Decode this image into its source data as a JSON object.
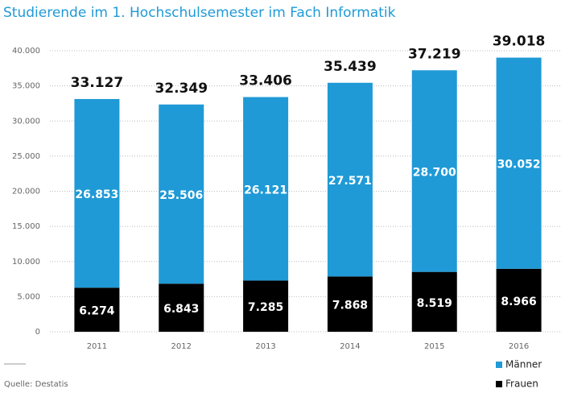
{
  "chart_data": {
    "type": "stacked_bar",
    "title": "Studierende im 1. Hochschulsemester im Fach Informatik",
    "categories": [
      "2011",
      "2012",
      "2013",
      "2014",
      "2015",
      "2016"
    ],
    "series": [
      {
        "name": "Frauen",
        "color": "#000000",
        "values": [
          6274,
          6843,
          7285,
          7868,
          8519,
          8966
        ],
        "value_labels": [
          "6.274",
          "6.843",
          "7.285",
          "7.868",
          "8.519",
          "8.966"
        ]
      },
      {
        "name": "Männer",
        "color": "#1f9ad6",
        "values": [
          26853,
          25506,
          26121,
          27571,
          28700,
          30052
        ],
        "value_labels": [
          "26.853",
          "25.506",
          "26.121",
          "27.571",
          "28.700",
          "30.052"
        ]
      }
    ],
    "totals": {
      "values": [
        33127,
        32349,
        33406,
        35439,
        37219,
        39018
      ],
      "value_labels": [
        "33.127",
        "32.349",
        "33.406",
        "35.439",
        "37.219",
        "39.018"
      ]
    },
    "ylim": [
      0,
      40000
    ],
    "yticks": [
      0,
      {
        "value": 5000,
        "label": "5.000"
      },
      {
        "value": 10000,
        "label": "10.000"
      },
      {
        "value": 15000,
        "label": "15.000"
      },
      {
        "value": 20000,
        "label": "20.000"
      },
      {
        "value": 25000,
        "label": "25.000"
      },
      {
        "value": 30000,
        "label": "30.000"
      },
      {
        "value": 35000,
        "label": "35.000"
      },
      {
        "value": 40000,
        "label": "40.000"
      }
    ],
    "grid": true,
    "legend": "bottom-right",
    "source": "Quelle: Destatis"
  }
}
